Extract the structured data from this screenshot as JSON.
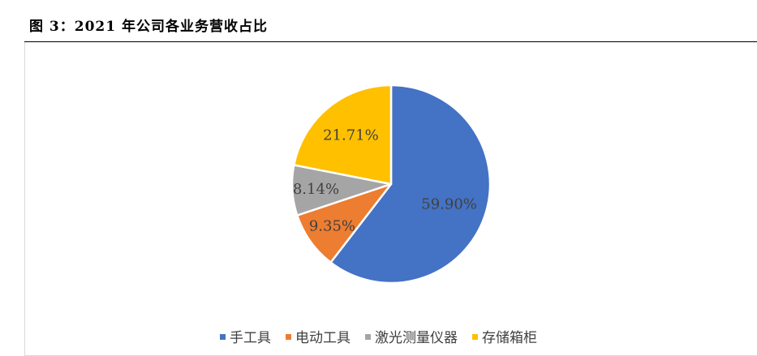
{
  "figure": {
    "title": "图 3：2021 年公司各业务营收占比"
  },
  "chart_data": {
    "type": "pie",
    "title": "",
    "categories": [
      "手工具",
      "电动工具",
      "激光测量仪器",
      "存储箱柜"
    ],
    "values": [
      59.9,
      9.35,
      8.14,
      21.71
    ],
    "data_labels": [
      "59.90%",
      "9.35%",
      "8.14%",
      "21.71%"
    ],
    "colors": [
      "#4472C4",
      "#ED7D31",
      "#A5A5A5",
      "#FFC000"
    ],
    "start_angle": "12 o'clock",
    "direction": "clockwise",
    "legend_position": "bottom"
  }
}
